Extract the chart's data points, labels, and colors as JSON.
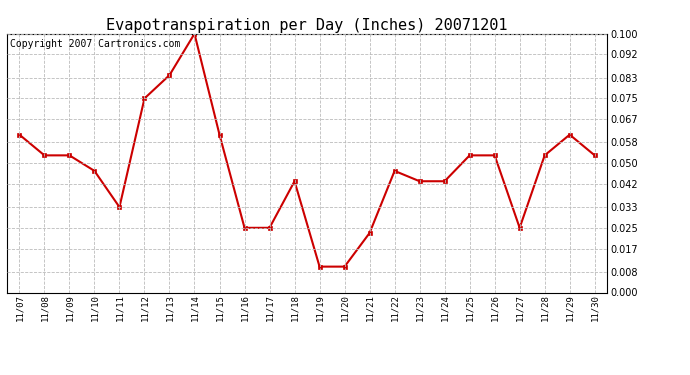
{
  "title": "Evapotranspiration per Day (Inches) 20071201",
  "copyright": "Copyright 2007 Cartronics.com",
  "x_labels": [
    "11/07",
    "11/08",
    "11/09",
    "11/10",
    "11/11",
    "11/12",
    "11/13",
    "11/14",
    "11/15",
    "11/16",
    "11/17",
    "11/18",
    "11/19",
    "11/20",
    "11/21",
    "11/22",
    "11/23",
    "11/24",
    "11/25",
    "11/26",
    "11/27",
    "11/28",
    "11/29",
    "11/30"
  ],
  "y_values": [
    0.061,
    0.053,
    0.053,
    0.047,
    0.033,
    0.075,
    0.084,
    0.1,
    0.061,
    0.025,
    0.025,
    0.043,
    0.01,
    0.01,
    0.023,
    0.047,
    0.043,
    0.043,
    0.053,
    0.053,
    0.025,
    0.053,
    0.061,
    0.053
  ],
  "y_ticks": [
    0.0,
    0.008,
    0.017,
    0.025,
    0.033,
    0.042,
    0.05,
    0.058,
    0.067,
    0.075,
    0.083,
    0.092,
    0.1
  ],
  "line_color": "#cc0000",
  "marker_color": "#cc0000",
  "background_color": "#ffffff",
  "grid_color": "#bbbbbb",
  "title_fontsize": 11,
  "copyright_fontsize": 7,
  "ylim": [
    0.0,
    0.1
  ]
}
